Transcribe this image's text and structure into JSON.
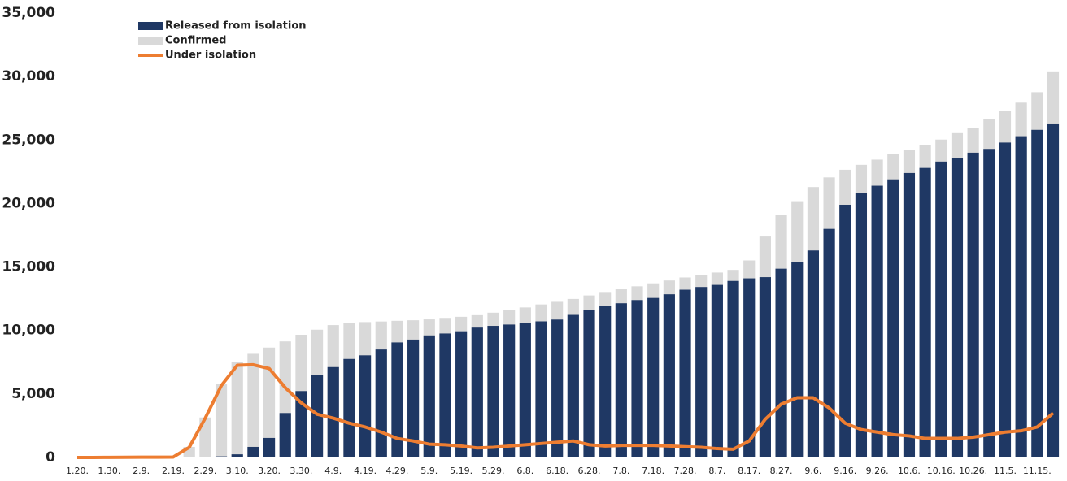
{
  "chart_data": {
    "type": "combo",
    "categories": [
      "1.20.",
      null,
      "1.30.",
      null,
      "2.9.",
      null,
      "2.19.",
      null,
      "2.29.",
      null,
      "3.10.",
      null,
      "3.20.",
      null,
      "3.30.",
      null,
      "4.9.",
      null,
      "4.19.",
      null,
      "4.29.",
      null,
      "5.9.",
      null,
      "5.19.",
      null,
      "5.29.",
      null,
      "6.8.",
      null,
      "6.18.",
      null,
      "6.28.",
      null,
      "7.8.",
      null,
      "7.18.",
      null,
      "7.28.",
      null,
      "8.7.",
      null,
      "8.17.",
      null,
      "8.27.",
      null,
      "9.6.",
      null,
      "9.16.",
      null,
      "9.26.",
      null,
      "10.6.",
      null,
      "10.16.",
      null,
      "10.26.",
      null,
      "11.5.",
      null,
      "11.15.",
      null
    ],
    "series": [
      {
        "name": "Released from isolation",
        "type": "bar",
        "color": "#1f3864",
        "values": [
          0,
          0,
          0,
          0,
          3,
          7,
          16,
          18,
          28,
          88,
          247,
          834,
          1540,
          3500,
          5228,
          6463,
          7117,
          7757,
          8042,
          8501,
          9059,
          9283,
          9610,
          9762,
          9938,
          10226,
          10363,
          10467,
          10612,
          10718,
          10859,
          11227,
          11613,
          11917,
          12144,
          12396,
          12562,
          12850,
          13211,
          13424,
          13590,
          13901,
          14105,
          14200,
          14866,
          15400,
          16300,
          18000,
          19900,
          20800,
          21400,
          21900,
          22400,
          22800,
          23300,
          23600,
          24000,
          24300,
          24800,
          25300,
          25800,
          26300
        ]
      },
      {
        "name": "Confirmed",
        "type": "bar",
        "color": "#d9d9d9",
        "values": [
          1,
          2,
          11,
          16,
          27,
          28,
          51,
          833,
          3150,
          5766,
          7513,
          8162,
          8652,
          9137,
          9661,
          10062,
          10423,
          10564,
          10661,
          10708,
          10761,
          10804,
          10874,
          10991,
          11078,
          11206,
          11402,
          11590,
          11814,
          12051,
          12257,
          12484,
          12757,
          13030,
          13244,
          13479,
          13711,
          13938,
          14175,
          14389,
          14562,
          14770,
          15515,
          17399,
          19077,
          20182,
          21296,
          22055,
          22657,
          23045,
          23455,
          23889,
          24239,
          24606,
          25035,
          25543,
          25955,
          26635,
          27284,
          27942,
          28769,
          30403
        ]
      },
      {
        "name": "Under isolation",
        "type": "line",
        "color": "#ed7d31",
        "values": [
          1,
          2,
          11,
          16,
          24,
          21,
          35,
          800,
          3100,
          5650,
          7260,
          7300,
          7000,
          5500,
          4300,
          3400,
          3100,
          2700,
          2400,
          2000,
          1500,
          1300,
          1050,
          1000,
          900,
          750,
          800,
          900,
          1000,
          1100,
          1200,
          1300,
          1000,
          900,
          950,
          950,
          950,
          900,
          850,
          800,
          700,
          650,
          1300,
          3000,
          4200,
          4700,
          4700,
          3900,
          2700,
          2200,
          2000,
          1800,
          1700,
          1500,
          1500,
          1500,
          1600,
          1800,
          2000,
          2100,
          2400,
          3500
        ]
      }
    ],
    "ylim": [
      0,
      35000
    ],
    "yticks": [
      0,
      {
        "value": 5000,
        "label": "5,000"
      },
      {
        "value": 10000,
        "label": "10,000"
      },
      {
        "value": 15000,
        "label": "15,000"
      },
      {
        "value": 20000,
        "label": "20,000"
      },
      {
        "value": 25000,
        "label": "25,000"
      },
      {
        "value": 30000,
        "label": "30,000"
      },
      {
        "value": 35000,
        "label": "35,000"
      }
    ],
    "grid": false,
    "legend": "top-left"
  }
}
